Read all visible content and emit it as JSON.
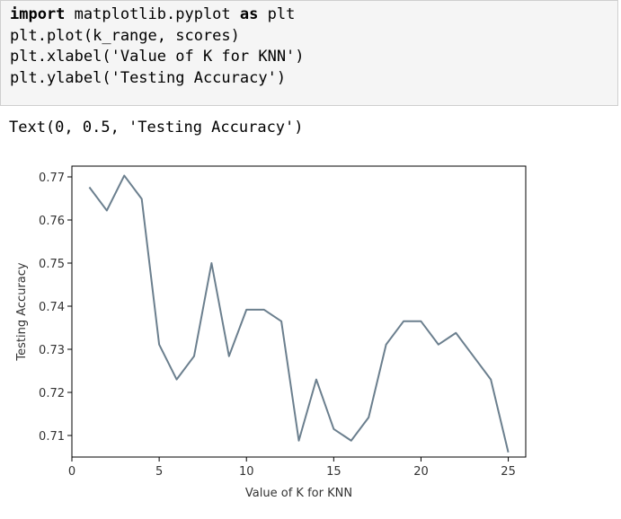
{
  "code_cell": {
    "lines": [
      {
        "parts": [
          {
            "t": "import",
            "c": "kw-plain"
          },
          {
            "t": " matplotlib.pyplot ",
            "c": ""
          },
          {
            "t": "as",
            "c": "kw-plain"
          },
          {
            "t": " plt",
            "c": ""
          }
        ]
      },
      {
        "parts": [
          {
            "t": "plt.plot(k_range, scores)",
            "c": ""
          }
        ]
      },
      {
        "parts": [
          {
            "t": "plt.xlabel(",
            "c": ""
          },
          {
            "t": "'Value of K for KNN'",
            "c": ""
          },
          {
            "t": ")",
            "c": ""
          }
        ]
      },
      {
        "parts": [
          {
            "t": "plt.ylabel(",
            "c": ""
          },
          {
            "t": "'Testing Accuracy'",
            "c": ""
          },
          {
            "t": ")",
            "c": ""
          }
        ]
      }
    ]
  },
  "output_text": "Text(0, 0.5, 'Testing Accuracy')",
  "chart_data": {
    "type": "line",
    "x": [
      1,
      2,
      3,
      4,
      5,
      6,
      7,
      8,
      9,
      10,
      11,
      12,
      13,
      14,
      15,
      16,
      17,
      18,
      19,
      20,
      21,
      22,
      23,
      24,
      25
    ],
    "series": [
      {
        "values": [
          0.7676,
          0.7622,
          0.7703,
          0.7649,
          0.7311,
          0.723,
          0.7284,
          0.75,
          0.7284,
          0.7392,
          0.7392,
          0.7365,
          0.7088,
          0.723,
          0.7115,
          0.7088,
          0.7142,
          0.7311,
          0.7365,
          0.7365,
          0.7311,
          0.7338,
          0.7284,
          0.723,
          0.7061
        ],
        "color": "#6b7f8e"
      }
    ],
    "xlabel": "Value of K for KNN",
    "ylabel": "Testing Accuracy",
    "xlim": [
      0,
      26
    ],
    "ylim": [
      0.705,
      0.7725
    ],
    "xticks": [
      0,
      5,
      10,
      15,
      20,
      25
    ],
    "xtick_labels": [
      "0",
      "5",
      "10",
      "15",
      "20",
      "25"
    ],
    "yticks": [
      0.71,
      0.72,
      0.73,
      0.74,
      0.75,
      0.76,
      0.77
    ],
    "ytick_labels": [
      "0.71",
      "0.72",
      "0.73",
      "0.74",
      "0.75",
      "0.76",
      "0.77"
    ],
    "grid": false
  }
}
